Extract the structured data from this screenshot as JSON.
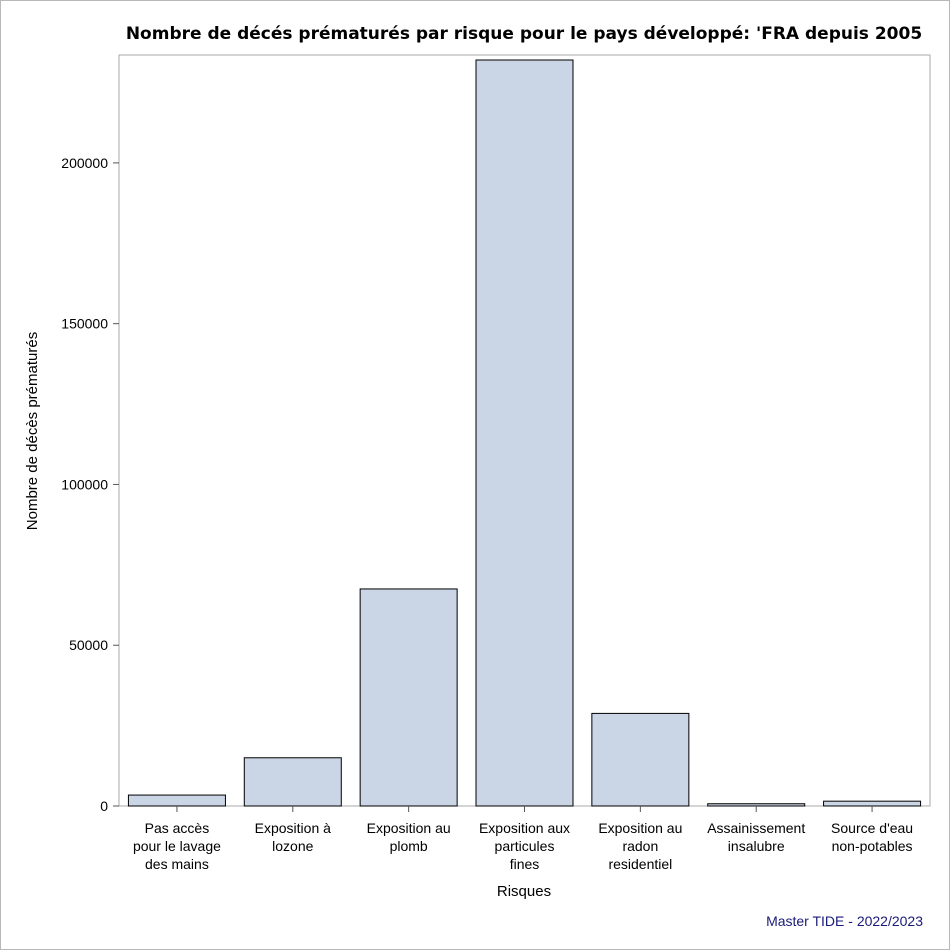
{
  "chart_data": {
    "type": "bar",
    "title": "Nombre de décés prématurés par risque pour le pays développé: 'FRA depuis 2005",
    "xlabel": "Risques",
    "ylabel": "Nombre de décès prématurés",
    "categories": [
      [
        "Pas accès",
        "pour le lavage",
        "des mains"
      ],
      [
        "Exposition à",
        "lozone"
      ],
      [
        "Exposition au",
        "plomb"
      ],
      [
        "Exposition aux",
        "particules",
        "fines"
      ],
      [
        "Exposition au",
        "radon",
        "residentiel"
      ],
      [
        "Assainissement",
        "insalubre"
      ],
      [
        "Source d'eau",
        "non-potables"
      ]
    ],
    "values": [
      3400,
      15000,
      67500,
      232000,
      28800,
      700,
      1500
    ],
    "ylim": [
      0,
      232000
    ],
    "yticks": [
      0,
      50000,
      100000,
      150000,
      200000
    ],
    "grid": false,
    "legend": "none",
    "bar_color": "#cad5e5",
    "bar_edge_color": "#000000"
  },
  "footnote": {
    "text": "Master TIDE - 2022/2023",
    "color": "#1a1a7a"
  }
}
